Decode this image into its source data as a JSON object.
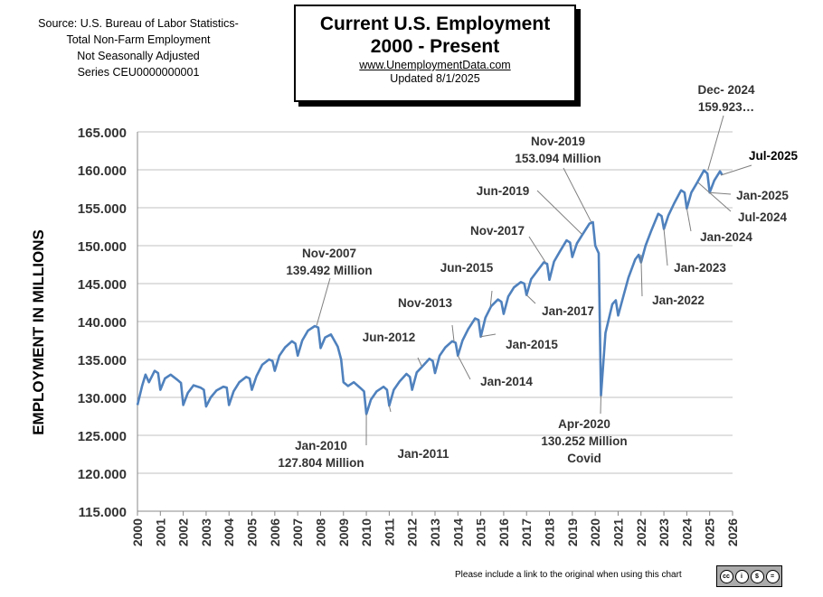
{
  "source_note": [
    "Source: U.S.  Bureau of Labor Statistics-",
    "Total Non-Farm Employment",
    "Not Seasonally Adjusted",
    "Series CEU0000000001"
  ],
  "title_box": {
    "line1": "Current U.S. Employment",
    "line2": "2000 - Present",
    "url": "www.UnemploymentData.com",
    "updated": "Updated   8/1/2025"
  },
  "footer": "Please include a link to the original when using this chart",
  "license_icon": "cc-by-nc-nd-icon",
  "chart_data": {
    "type": "line",
    "ylabel": "EMPLOYMENT IN MILLIONS",
    "xlabel": "",
    "ylim": [
      115,
      165
    ],
    "xlim": [
      2000,
      2026
    ],
    "grid": true,
    "line_color": "#4f81bd",
    "y_ticks": [
      "115.000",
      "120.000",
      "125.000",
      "130.000",
      "135.000",
      "140.000",
      "145.000",
      "150.000",
      "155.000",
      "160.000",
      "165.000"
    ],
    "x_ticks": [
      "2000",
      "2001",
      "2002",
      "2003",
      "2004",
      "2005",
      "2006",
      "2007",
      "2008",
      "2009",
      "2010",
      "2011",
      "2012",
      "2013",
      "2014",
      "2015",
      "2016",
      "2017",
      "2018",
      "2019",
      "2020",
      "2021",
      "2022",
      "2023",
      "2024",
      "2025",
      "2026"
    ],
    "series": [
      {
        "x": [
          2000.0,
          2000.2,
          2000.35,
          2000.5,
          2000.75,
          2000.9,
          2001.0,
          2001.2,
          2001.45,
          2001.75,
          2001.9,
          2002.0,
          2002.2,
          2002.45,
          2002.75,
          2002.9,
          2003.0,
          2003.2,
          2003.45,
          2003.75,
          2003.9,
          2004.0,
          2004.2,
          2004.45,
          2004.75,
          2004.9,
          2005.0,
          2005.2,
          2005.45,
          2005.75,
          2005.9,
          2006.0,
          2006.2,
          2006.45,
          2006.75,
          2006.9,
          2007.0,
          2007.2,
          2007.45,
          2007.75,
          2007.9,
          2008.0,
          2008.2,
          2008.45,
          2008.75,
          2008.9,
          2009.0,
          2009.2,
          2009.45,
          2009.75,
          2009.9,
          2010.0,
          2010.2,
          2010.45,
          2010.75,
          2010.9,
          2011.0,
          2011.2,
          2011.45,
          2011.75,
          2011.9,
          2012.0,
          2012.2,
          2012.45,
          2012.75,
          2012.9,
          2013.0,
          2013.2,
          2013.45,
          2013.75,
          2013.9,
          2014.0,
          2014.2,
          2014.45,
          2014.75,
          2014.9,
          2015.0,
          2015.2,
          2015.45,
          2015.75,
          2015.9,
          2016.0,
          2016.2,
          2016.45,
          2016.75,
          2016.9,
          2017.0,
          2017.2,
          2017.45,
          2017.75,
          2017.9,
          2018.0,
          2018.2,
          2018.45,
          2018.75,
          2018.9,
          2019.0,
          2019.2,
          2019.45,
          2019.75,
          2019.9,
          2020.0,
          2020.15,
          2020.25,
          2020.45,
          2020.75,
          2020.9,
          2021.0,
          2021.2,
          2021.45,
          2021.75,
          2021.9,
          2022.0,
          2022.2,
          2022.45,
          2022.75,
          2022.9,
          2023.0,
          2023.2,
          2023.45,
          2023.75,
          2023.9,
          2024.0,
          2024.2,
          2024.45,
          2024.75,
          2024.9,
          2025.0,
          2025.2,
          2025.45,
          2025.55
        ],
        "values": [
          129.0,
          131.5,
          133.0,
          132.0,
          133.5,
          133.2,
          131.0,
          132.5,
          133.0,
          132.3,
          131.9,
          129.0,
          130.6,
          131.6,
          131.3,
          131.0,
          128.8,
          130.0,
          130.9,
          131.4,
          131.3,
          129.0,
          130.8,
          132.0,
          132.7,
          132.5,
          131.0,
          132.8,
          134.3,
          135.0,
          134.8,
          133.5,
          135.5,
          136.6,
          137.4,
          137.1,
          135.5,
          137.5,
          138.8,
          139.4,
          139.2,
          136.5,
          137.9,
          138.3,
          136.7,
          135.0,
          132.0,
          131.5,
          132.0,
          131.2,
          130.8,
          127.8,
          129.7,
          130.8,
          131.4,
          131.0,
          128.9,
          131.0,
          132.1,
          133.1,
          132.7,
          131.0,
          133.3,
          134.1,
          135.1,
          134.8,
          133.2,
          135.5,
          136.6,
          137.4,
          137.2,
          135.5,
          137.5,
          139.0,
          140.4,
          140.2,
          138.0,
          140.5,
          142.0,
          142.9,
          142.6,
          141.0,
          143.3,
          144.5,
          145.2,
          145.0,
          143.5,
          145.6,
          146.6,
          147.8,
          147.6,
          145.5,
          147.9,
          149.2,
          150.7,
          150.4,
          148.5,
          150.3,
          151.5,
          152.9,
          153.094,
          150.0,
          149.0,
          130.252,
          138.5,
          142.3,
          142.8,
          140.8,
          143.0,
          145.8,
          148.2,
          148.8,
          147.8,
          150.0,
          152.0,
          154.2,
          153.9,
          152.2,
          154.0,
          155.6,
          157.3,
          157.0,
          154.9,
          157.0,
          158.3,
          159.923,
          159.5,
          157.0,
          158.6,
          159.8,
          159.3
        ]
      }
    ],
    "annotations": [
      {
        "label": "Nov-2007\n139.492 Million",
        "x": 2007.83,
        "y": 139.49
      },
      {
        "label": "Jan-2010\n127.804 Million",
        "x": 2010.0,
        "y": 127.8
      },
      {
        "label": "Jan-2011",
        "x": 2011.0,
        "y": 128.9
      },
      {
        "label": "Jun-2012",
        "x": 2012.42,
        "y": 134.1
      },
      {
        "label": "Nov-2013",
        "x": 2013.83,
        "y": 137.4
      },
      {
        "label": "Jan-2014",
        "x": 2014.0,
        "y": 135.5
      },
      {
        "label": "Jun-2015",
        "x": 2015.42,
        "y": 142.0
      },
      {
        "label": "Jan-2015",
        "x": 2015.0,
        "y": 138.0
      },
      {
        "label": "Jan-2017",
        "x": 2017.0,
        "y": 143.5
      },
      {
        "label": "Nov-2017",
        "x": 2017.83,
        "y": 147.8
      },
      {
        "label": "Jun-2019",
        "x": 2019.42,
        "y": 151.5
      },
      {
        "label": "Nov-2019\n153.094 Million",
        "x": 2019.83,
        "y": 153.09
      },
      {
        "label": "Apr-2020\n130.252 Million\nCovid",
        "x": 2020.25,
        "y": 130.25
      },
      {
        "label": "Jan-2022",
        "x": 2022.0,
        "y": 148.8
      },
      {
        "label": "Jan-2023",
        "x": 2023.0,
        "y": 152.2
      },
      {
        "label": "Jan-2024",
        "x": 2024.0,
        "y": 154.9
      },
      {
        "label": "Dec- 2024\n159.923…",
        "x": 2024.92,
        "y": 159.92
      },
      {
        "label": "Jul-2024",
        "x": 2024.5,
        "y": 158.3
      },
      {
        "label": "Jan-2025",
        "x": 2025.0,
        "y": 157.0
      },
      {
        "label": "Jul-2025",
        "x": 2025.5,
        "y": 159.3
      }
    ]
  }
}
